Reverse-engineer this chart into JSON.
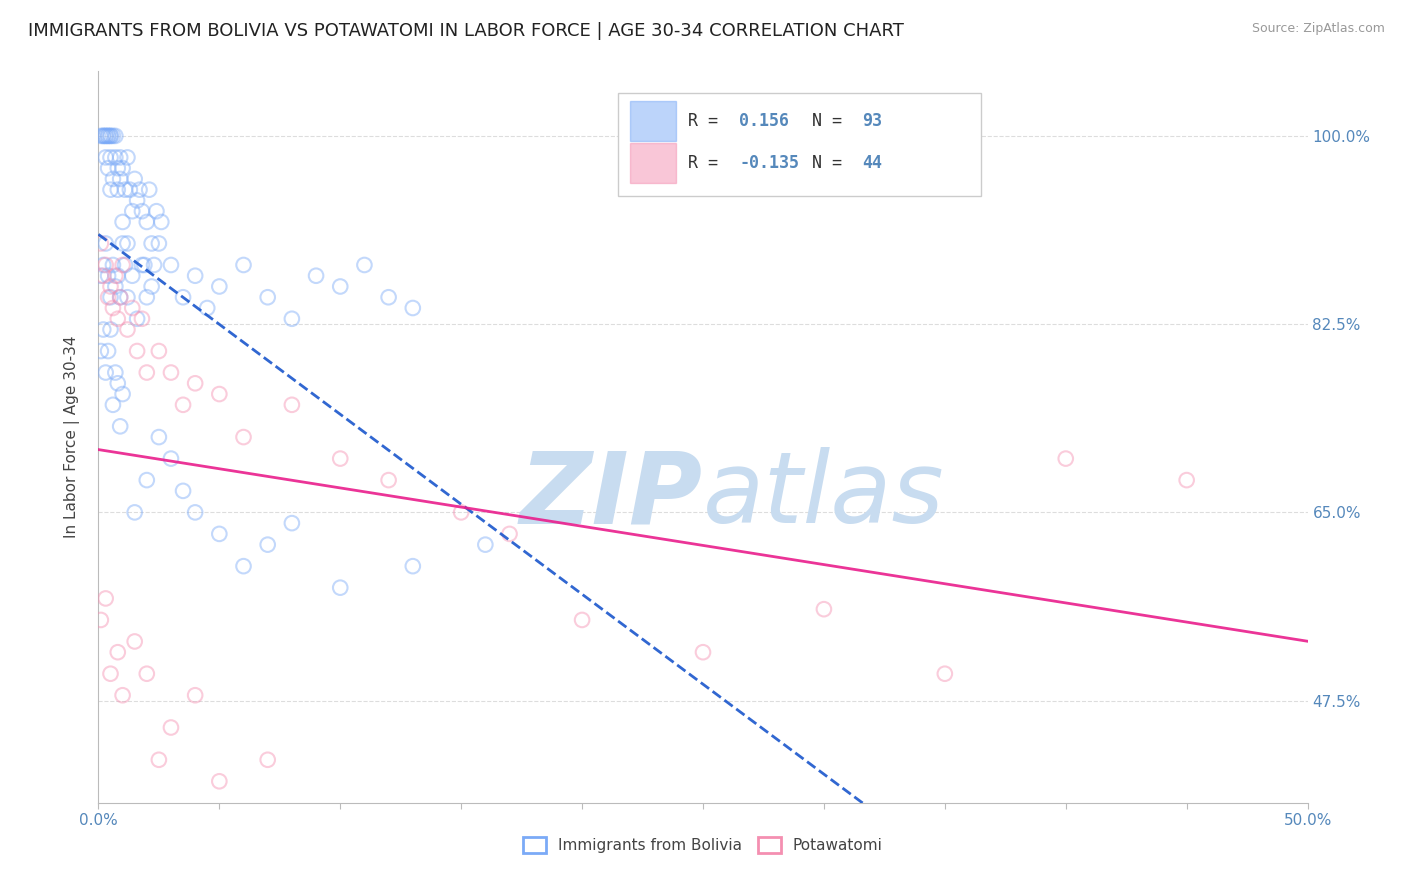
{
  "title": "IMMIGRANTS FROM BOLIVIA VS POTAWATOMI IN LABOR FORCE | AGE 30-34 CORRELATION CHART",
  "source": "Source: ZipAtlas.com",
  "ylabel": "In Labor Force | Age 30-34",
  "yticks": [
    0.475,
    0.65,
    0.825,
    1.0
  ],
  "ytick_labels": [
    "47.5%",
    "65.0%",
    "82.5%",
    "100.0%"
  ],
  "xlim": [
    0.0,
    0.5
  ],
  "ylim": [
    0.38,
    1.06
  ],
  "bolivia_color": "#7BAAF7",
  "potawatomi_color": "#F48FB1",
  "bolivia_line_color": "#1A56CC",
  "potawatomi_line_color": "#E91E8C",
  "watermark_zip": "ZIP",
  "watermark_atlas": "atlas",
  "watermark_color": "#C8DCF0",
  "bolivia_label": "Immigrants from Bolivia",
  "potawatomi_label": "Potawatomi",
  "legend_r1_val": "0.156",
  "legend_n1_val": "93",
  "legend_r2_val": "-0.135",
  "legend_n2_val": "44",
  "grid_color": "#DDDDDD",
  "background_color": "#FFFFFF",
  "title_fontsize": 13,
  "axis_label_fontsize": 11,
  "tick_fontsize": 11,
  "scatter_size": 110,
  "scatter_alpha": 0.45,
  "scatter_linewidth": 1.5,
  "bolivia_x_data": [
    0.001,
    0.002,
    0.002,
    0.003,
    0.003,
    0.003,
    0.004,
    0.004,
    0.004,
    0.005,
    0.005,
    0.005,
    0.005,
    0.006,
    0.006,
    0.007,
    0.007,
    0.008,
    0.008,
    0.009,
    0.009,
    0.01,
    0.01,
    0.011,
    0.012,
    0.012,
    0.013,
    0.014,
    0.015,
    0.016,
    0.017,
    0.018,
    0.019,
    0.02,
    0.021,
    0.022,
    0.023,
    0.024,
    0.025,
    0.026,
    0.001,
    0.002,
    0.003,
    0.004,
    0.005,
    0.006,
    0.007,
    0.008,
    0.009,
    0.01,
    0.011,
    0.012,
    0.014,
    0.016,
    0.018,
    0.02,
    0.022,
    0.03,
    0.035,
    0.04,
    0.045,
    0.05,
    0.06,
    0.07,
    0.08,
    0.09,
    0.1,
    0.11,
    0.12,
    0.13,
    0.001,
    0.002,
    0.003,
    0.004,
    0.005,
    0.006,
    0.007,
    0.008,
    0.009,
    0.01,
    0.015,
    0.02,
    0.025,
    0.03,
    0.035,
    0.04,
    0.05,
    0.06,
    0.07,
    0.08,
    0.1,
    0.13,
    0.16
  ],
  "bolivia_y_data": [
    1.0,
    1.0,
    1.0,
    1.0,
    1.0,
    0.98,
    1.0,
    1.0,
    0.97,
    1.0,
    0.95,
    0.98,
    1.0,
    0.96,
    1.0,
    1.0,
    0.98,
    0.95,
    0.97,
    0.96,
    0.98,
    0.92,
    0.97,
    0.95,
    0.98,
    0.9,
    0.95,
    0.93,
    0.96,
    0.94,
    0.95,
    0.93,
    0.88,
    0.92,
    0.95,
    0.9,
    0.88,
    0.93,
    0.9,
    0.92,
    0.87,
    0.88,
    0.9,
    0.87,
    0.85,
    0.88,
    0.86,
    0.87,
    0.85,
    0.9,
    0.88,
    0.85,
    0.87,
    0.83,
    0.88,
    0.85,
    0.86,
    0.88,
    0.85,
    0.87,
    0.84,
    0.86,
    0.88,
    0.85,
    0.83,
    0.87,
    0.86,
    0.88,
    0.85,
    0.84,
    0.8,
    0.82,
    0.78,
    0.8,
    0.82,
    0.75,
    0.78,
    0.77,
    0.73,
    0.76,
    0.65,
    0.68,
    0.72,
    0.7,
    0.67,
    0.65,
    0.63,
    0.6,
    0.62,
    0.64,
    0.58,
    0.6,
    0.62
  ],
  "potawatomi_x_data": [
    0.001,
    0.002,
    0.003,
    0.004,
    0.005,
    0.006,
    0.007,
    0.008,
    0.009,
    0.01,
    0.012,
    0.014,
    0.016,
    0.018,
    0.02,
    0.025,
    0.03,
    0.035,
    0.04,
    0.05,
    0.06,
    0.08,
    0.1,
    0.12,
    0.15,
    0.17,
    0.2,
    0.25,
    0.3,
    0.35,
    0.001,
    0.003,
    0.005,
    0.008,
    0.01,
    0.015,
    0.02,
    0.025,
    0.03,
    0.04,
    0.05,
    0.07,
    0.4,
    0.45
  ],
  "potawatomi_y_data": [
    0.9,
    0.87,
    0.88,
    0.85,
    0.86,
    0.84,
    0.87,
    0.83,
    0.85,
    0.88,
    0.82,
    0.84,
    0.8,
    0.83,
    0.78,
    0.8,
    0.78,
    0.75,
    0.77,
    0.76,
    0.72,
    0.75,
    0.7,
    0.68,
    0.65,
    0.63,
    0.55,
    0.52,
    0.56,
    0.5,
    0.55,
    0.57,
    0.5,
    0.52,
    0.48,
    0.53,
    0.5,
    0.42,
    0.45,
    0.48,
    0.4,
    0.42,
    0.7,
    0.68
  ]
}
